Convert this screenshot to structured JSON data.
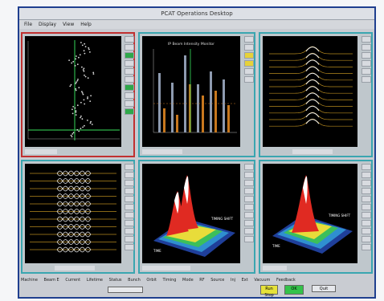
{
  "window": {
    "title": "PCAT Operations Desktop"
  },
  "menu": [
    "File",
    "Display",
    "View",
    "Help"
  ],
  "panels": {
    "bar": {
      "title": "IP Beam Intensity Monitor"
    },
    "surf1": {
      "label_left": "TIME",
      "label_right": "TIMING SHIFT"
    },
    "surf2": {
      "label_left": "TIME",
      "label_right": "TIMING SHIFT"
    }
  },
  "status": {
    "items": [
      "Machine",
      "Beam E",
      "Current",
      "Lifetime",
      "Status",
      "Bunch",
      "Orbit",
      "Timing",
      "Mode",
      "RF",
      "Source",
      "Inj",
      "Ext",
      "Vacuum",
      "Feedback"
    ]
  },
  "buttons": {
    "run": "Run Stop",
    "ok": "OK",
    "quit": "Quit"
  },
  "colors": {
    "frame": "#1f3f8f",
    "panel_border": "#3aa6b0",
    "selected_border": "#c03030",
    "plot_bg": "#000000"
  }
}
